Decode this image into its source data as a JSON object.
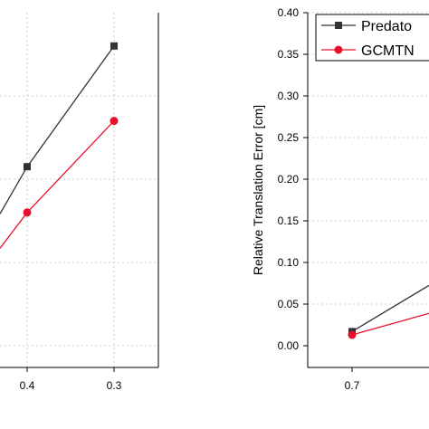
{
  "chart_data": [
    {
      "type": "line",
      "title": "",
      "xlabel": "",
      "ylabel": "",
      "categories": [
        "0.4",
        "0.3"
      ],
      "series": [
        {
          "name": "",
          "color": "#333333",
          "marker": "square",
          "values": [
            0.215,
            0.36
          ]
        },
        {
          "name": "",
          "color": "#e8112d",
          "marker": "circle",
          "values": [
            0.16,
            0.27
          ]
        }
      ],
      "ylim": [
        0.0,
        0.4
      ],
      "grid": true,
      "partially_visible": true
    },
    {
      "type": "line",
      "title": "",
      "xlabel": "",
      "ylabel": "Relative Translation Error [cm]",
      "categories": [
        "0.7"
      ],
      "yticks": [
        "0.00",
        "0.05",
        "0.10",
        "0.15",
        "0.20",
        "0.25",
        "0.30",
        "0.35",
        "0.40"
      ],
      "ylim": [
        0.0,
        0.4
      ],
      "series": [
        {
          "name": "Predato",
          "color": "#333333",
          "marker": "square",
          "values": [
            0.017
          ]
        },
        {
          "name": "GCMTN",
          "color": "#e8112d",
          "marker": "circle",
          "values": [
            0.013
          ]
        }
      ],
      "legend": "top-right",
      "grid": true,
      "partially_visible": true
    }
  ]
}
